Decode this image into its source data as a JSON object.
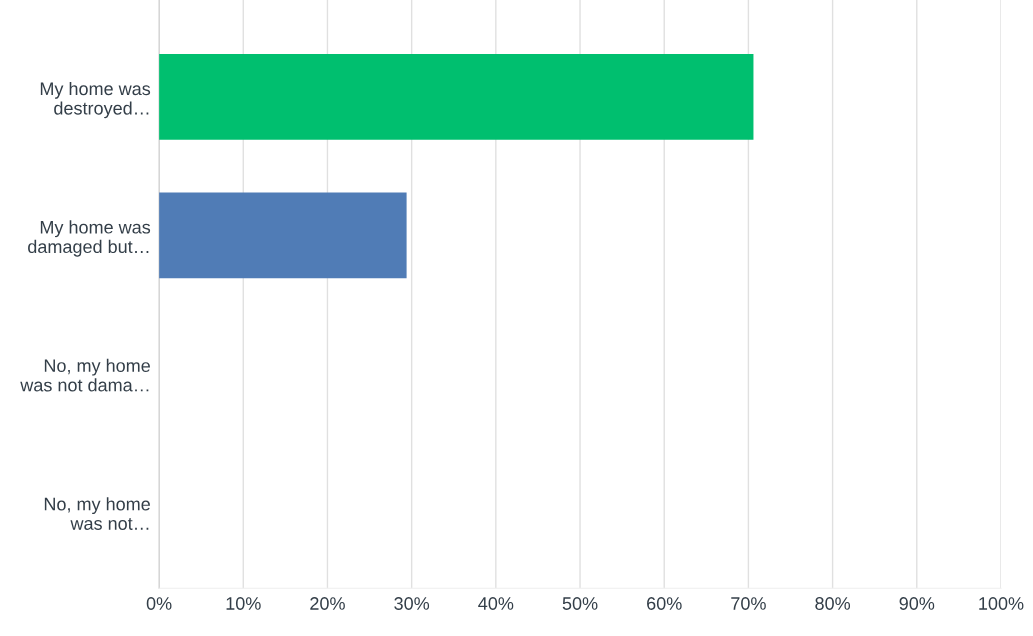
{
  "chart_data": {
    "type": "bar",
    "orientation": "horizontal",
    "categories": [
      "My home was\ndestroyed…",
      "My home was\ndamaged but…",
      "No, my home\nwas not dama…",
      "No, my home\nwas not…"
    ],
    "values": [
      70.6,
      29.4,
      0,
      0
    ],
    "colors": [
      "#00bf6f",
      "#507cb6",
      "#507cb6",
      "#507cb6"
    ],
    "xlim": [
      0,
      100
    ],
    "xticks": [
      {
        "value": 0,
        "label": "0%"
      },
      {
        "value": 10,
        "label": "10%"
      },
      {
        "value": 20,
        "label": "20%"
      },
      {
        "value": 30,
        "label": "30%"
      },
      {
        "value": 40,
        "label": "40%"
      },
      {
        "value": 50,
        "label": "50%"
      },
      {
        "value": 60,
        "label": "60%"
      },
      {
        "value": 70,
        "label": "70%"
      },
      {
        "value": 80,
        "label": "80%"
      },
      {
        "value": 90,
        "label": "90%"
      },
      {
        "value": 100,
        "label": "100%"
      }
    ],
    "grid": "x"
  }
}
